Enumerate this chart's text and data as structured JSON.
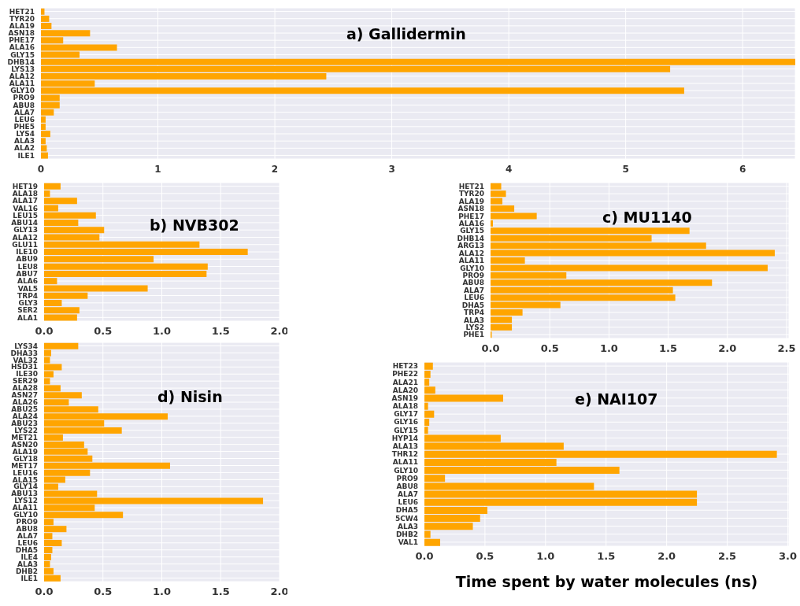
{
  "chart_data": [
    {
      "type": "bar",
      "orientation": "horizontal",
      "title": "a) Gallidermin",
      "categories": [
        "HET21",
        "TYR20",
        "ALA19",
        "ASN18",
        "PHE17",
        "ALA16",
        "GLY15",
        "DHB14",
        "LYS13",
        "ALA12",
        "ALA11",
        "GLY10",
        "PRO9",
        "ABU8",
        "ALA7",
        "LEU6",
        "PHE5",
        "LYS4",
        "ALA3",
        "ALA2",
        "ILE1"
      ],
      "values": [
        0.03,
        0.07,
        0.09,
        0.42,
        0.19,
        0.65,
        0.33,
        6.45,
        5.38,
        2.44,
        0.46,
        5.5,
        0.16,
        0.16,
        0.11,
        0.04,
        0.04,
        0.08,
        0.04,
        0.05,
        0.06
      ],
      "color": "#ffa500",
      "xlim": [
        0,
        6.45
      ],
      "xticks": [
        0,
        1,
        2,
        3,
        4,
        5,
        6
      ],
      "grid": true
    },
    {
      "type": "bar",
      "orientation": "horizontal",
      "title": "b) NVB302",
      "categories": [
        "HET19",
        "ALA18",
        "ALA17",
        "VAL16",
        "LEU15",
        "ABU14",
        "GLY13",
        "ALA12",
        "GLU11",
        "ILE10",
        "ABU9",
        "LEU8",
        "ABU7",
        "ALA6",
        "VAL5",
        "TRP4",
        "GLY3",
        "SER2",
        "ALA1"
      ],
      "values": [
        0.14,
        0.05,
        0.28,
        0.12,
        0.44,
        0.29,
        0.51,
        0.47,
        1.32,
        1.73,
        0.93,
        1.39,
        1.38,
        0.11,
        0.88,
        0.37,
        0.15,
        0.3,
        0.28
      ],
      "color": "#ffa500",
      "xlim": [
        0,
        2
      ],
      "xticks": [
        {
          "value": 0,
          "label": "0.0"
        },
        0.5,
        {
          "value": 1,
          "label": "1.0"
        },
        1.5,
        {
          "value": 2,
          "label": "2.0"
        }
      ],
      "grid": true
    },
    {
      "type": "bar",
      "orientation": "horizontal",
      "title": "c) MU1140",
      "categories": [
        "HET21",
        "TYR20",
        "ALA19",
        "ASN18",
        "PHE17",
        "ALA16",
        "GLY15",
        "DHB14",
        "ARG13",
        "ALA12",
        "ALA11",
        "GLY10",
        "PRO9",
        "ABU8",
        "ALA7",
        "LEU6",
        "DHA5",
        "TRP4",
        "ALA3",
        "LYS2",
        "PHE1"
      ],
      "values": [
        0.09,
        0.13,
        0.1,
        0.2,
        0.39,
        0.02,
        1.68,
        1.36,
        1.82,
        2.4,
        0.29,
        2.34,
        0.64,
        1.87,
        1.54,
        1.56,
        0.59,
        0.27,
        0.18,
        0.18,
        0.01
      ],
      "color": "#ffa500",
      "xlim": [
        0,
        2.52
      ],
      "xticks": [
        {
          "value": 0,
          "label": "0.0"
        },
        0.5,
        {
          "value": 1,
          "label": "1.0"
        },
        1.5,
        {
          "value": 2,
          "label": "2.0"
        },
        2.5
      ],
      "grid": true
    },
    {
      "type": "bar",
      "orientation": "horizontal",
      "title": "d) Nisin",
      "categories": [
        "LYS34",
        "DHA33",
        "VAL32",
        "HSD31",
        "ILE30",
        "SER29",
        "ALA28",
        "ASN27",
        "ALA26",
        "ABU25",
        "ALA24",
        "ABU23",
        "LYS22",
        "MET21",
        "ASN20",
        "ALA19",
        "GLY18",
        "MET17",
        "LEU16",
        "ALA15",
        "GLY14",
        "ABU13",
        "LYS12",
        "ALA11",
        "GLY10",
        "PRO9",
        "ABU8",
        "ALA7",
        "LEU6",
        "DHA5",
        "ILE4",
        "ALA3",
        "DHB2",
        "ILE1"
      ],
      "values": [
        0.29,
        0.06,
        0.05,
        0.15,
        0.08,
        0.05,
        0.14,
        0.32,
        0.21,
        0.46,
        1.05,
        0.51,
        0.66,
        0.16,
        0.34,
        0.37,
        0.41,
        1.07,
        0.39,
        0.18,
        0.12,
        0.45,
        1.86,
        0.43,
        0.67,
        0.08,
        0.19,
        0.07,
        0.15,
        0.07,
        0.06,
        0.05,
        0.08,
        0.14
      ],
      "color": "#ffa500",
      "xlim": [
        0,
        2
      ],
      "xticks": [
        {
          "value": 0,
          "label": "0.0"
        },
        0.5,
        {
          "value": 1,
          "label": "1.0"
        },
        1.5,
        {
          "value": 2,
          "label": "2.0"
        }
      ],
      "grid": true
    },
    {
      "type": "bar",
      "orientation": "horizontal",
      "title": "e) NAI107",
      "xlabel": "Time spent by water molecules (ns)",
      "categories": [
        "HET23",
        "PHE22",
        "ALA21",
        "ALA20",
        "ASN19",
        "ALA18",
        "GLY17",
        "GLY16",
        "GLY15",
        "HYP14",
        "ALA13",
        "THR12",
        "ALA11",
        "GLY10",
        "PRO9",
        "ABU8",
        "ALA7",
        "LEU6",
        "DHA5",
        "5CW4",
        "ALA3",
        "DHB2",
        "VAL1"
      ],
      "values": [
        0.07,
        0.05,
        0.04,
        0.09,
        0.65,
        0.03,
        0.08,
        0.04,
        0.03,
        0.63,
        1.15,
        2.91,
        1.09,
        1.61,
        0.17,
        1.4,
        2.25,
        2.25,
        0.52,
        0.46,
        0.4,
        0.05,
        0.13
      ],
      "color": "#ffa500",
      "xlim": [
        0,
        3.01
      ],
      "xticks": [
        {
          "value": 0,
          "label": "0.0"
        },
        0.5,
        {
          "value": 1,
          "label": "1.0"
        },
        1.5,
        {
          "value": 2,
          "label": "2.0"
        },
        2.5,
        {
          "value": 3,
          "label": "3.0"
        }
      ],
      "grid": true
    }
  ]
}
